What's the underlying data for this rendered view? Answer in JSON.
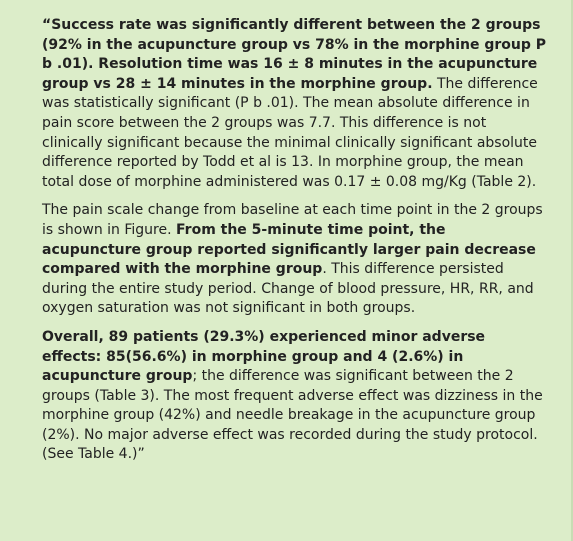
{
  "quote": {
    "paragraphs": [
      [
        {
          "strong": "“Success rate was significantly different between the 2 groups (92% in the acupuncture group vs 78% in the morphine group P b .01). Resolution time was 16 ± 8 minutes in the acupuncture group vs 28 ± 14 minutes in the morphine group."
        },
        {
          "plain": " The difference was statistically significant (P b .01). The mean absolute difference in pain score between the 2 groups was 7.7. This difference is not clinically significant because the minimal clinically significant absolute difference reported by Todd et al is 13. In morphine group, the mean total dose of morphine administered was 0.17 ± 0.08 mg/Kg (Table 2)."
        }
      ],
      [
        {
          "plain": "The pain scale change from baseline at each time point in the 2 groups is shown in Figure. "
        },
        {
          "strong": "From the 5-minute time point, the acupuncture group reported significantly larger pain decrease compared with the morphine group"
        },
        {
          "plain": ". This difference persisted during the entire study period. Change of blood pressure, HR, RR, and oxygen saturation was not significant in both groups."
        }
      ],
      [
        {
          "strong": "Overall, 89 patients (29.3%) experienced minor adverse effects: 85(56.6%) in morphine group and 4 (2.6%) in acupuncture group"
        },
        {
          "plain": "; the difference was significant between the 2 groups (Table 3). The most frequent adverse effect was dizziness in the morphine group (42%) and needle breakage in the acupuncture group (2%). No major adverse effect was recorded during the study protocol. (See Table 4.)”"
        }
      ]
    ]
  }
}
